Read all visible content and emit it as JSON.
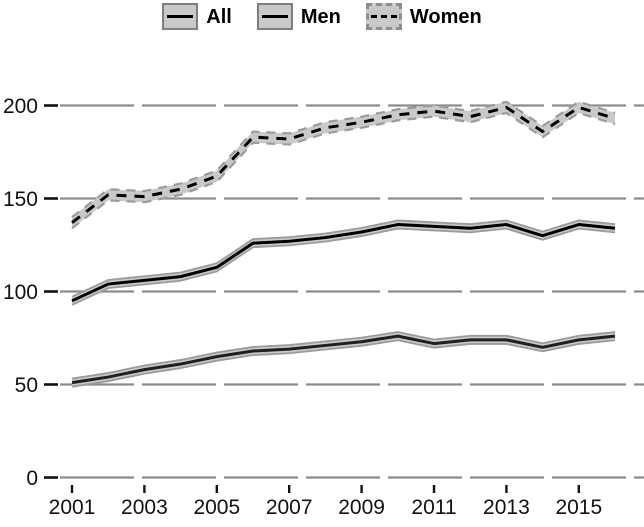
{
  "legend": {
    "position": "top-center",
    "items": [
      {
        "label": "All",
        "key": "solid-black-line-in-gray-box"
      },
      {
        "label": "Men",
        "key": "solid-black-line-in-gray-box"
      },
      {
        "label": "Women",
        "key": "dashed-black-line-in-dashed-gray-box"
      }
    ]
  },
  "chart_data": {
    "type": "line",
    "x": [
      2001,
      2002,
      2003,
      2004,
      2005,
      2006,
      2007,
      2008,
      2009,
      2010,
      2011,
      2012,
      2013,
      2014,
      2015,
      2016
    ],
    "series": [
      {
        "name": "All",
        "line": "solid",
        "color": "#000000",
        "ci": 2.2,
        "values": [
          95,
          104,
          106,
          108,
          113,
          126,
          127,
          129,
          132,
          136,
          135,
          134,
          136,
          130,
          136,
          134
        ]
      },
      {
        "name": "Men",
        "line": "solid",
        "color": "#1f1f1f",
        "ci": 2.2,
        "values": [
          51,
          54,
          58,
          61,
          65,
          68,
          69,
          71,
          73,
          76,
          72,
          74,
          74,
          70,
          74,
          76
        ]
      },
      {
        "name": "Women",
        "line": "dashed",
        "color": "#000000",
        "ci": 3,
        "values": [
          137,
          152,
          151,
          155,
          162,
          183,
          182,
          188,
          191,
          195,
          197,
          194,
          199,
          186,
          199,
          193
        ]
      }
    ],
    "xticks": [
      2001,
      2003,
      2005,
      2007,
      2009,
      2011,
      2013,
      2015
    ],
    "yticks": [
      0,
      50,
      100,
      150,
      200
    ],
    "ylim": [
      0,
      235
    ],
    "grid": "horizontal-dashed",
    "grid_color": "#8c8c8c",
    "band_color": "#c9c9c9",
    "band_edge_color": "#9b9b9b",
    "legend_position": "top-center"
  }
}
